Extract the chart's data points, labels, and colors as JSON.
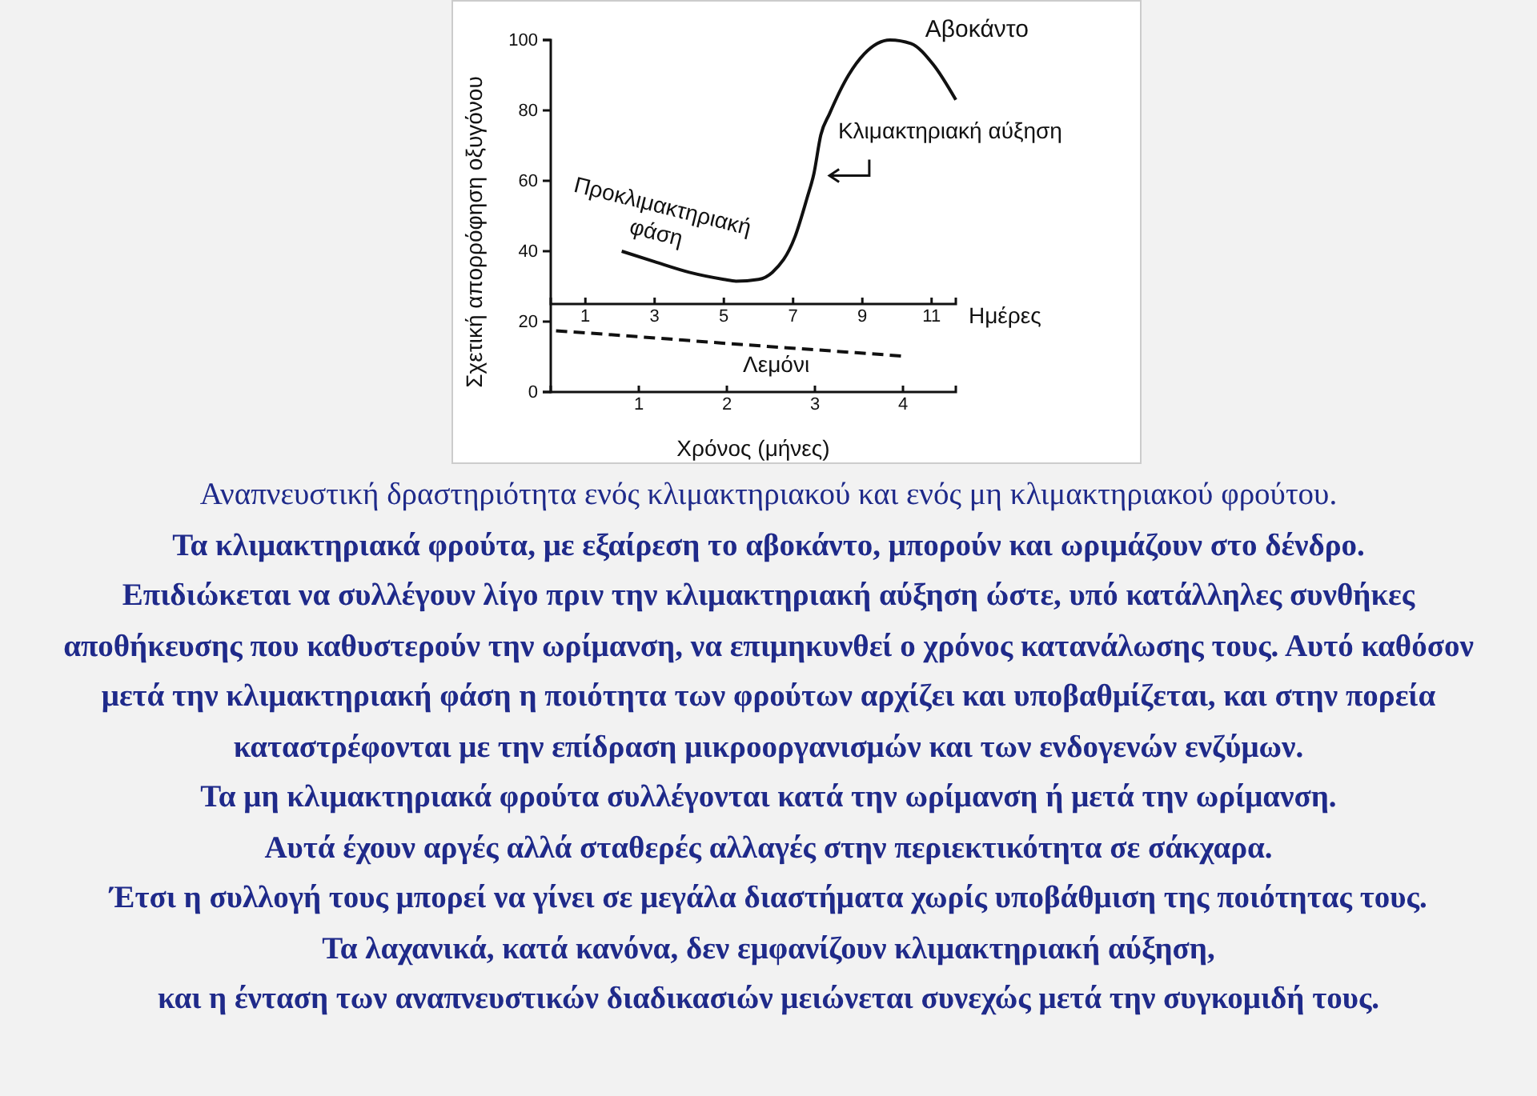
{
  "chart_data": {
    "type": "line",
    "title": "Αναπνευστική δραστηριότητα ενός κλιμακτηριακού και ενός μη κλιμακτηριακού φρούτου.",
    "ylabel": "Σχετική απορρόφηση οξυγόνου",
    "xlabel": "Χρόνος (μήνες)",
    "x2label": "Ημέρες",
    "xlim": [
      0,
      4.6
    ],
    "xticks": [
      1,
      2,
      3,
      4
    ],
    "x2lim": [
      0,
      11.7
    ],
    "x2ticks": [
      1,
      3,
      5,
      7,
      9,
      11
    ],
    "ylim": [
      0,
      100
    ],
    "yticks": [
      0,
      20,
      40,
      60,
      80,
      100
    ],
    "grid": false,
    "marker": "none",
    "series": [
      {
        "name": "Αβοκάντο",
        "color": "#111111",
        "axis": "x2",
        "line_style": "solid",
        "x": [
          2.05,
          3,
          4,
          5,
          5.35,
          6,
          6.4,
          7.05,
          7.4,
          7.6,
          7.8,
          8.05,
          8.6,
          9.05,
          9.8,
          10.4,
          11.05,
          11.7
        ],
        "values": [
          40,
          37,
          34,
          32,
          31.5,
          32,
          34,
          44,
          55,
          62,
          73,
          79,
          90,
          96,
          100,
          99,
          93,
          83
        ]
      },
      {
        "name": "Λεμόνι",
        "color": "#111111",
        "line_style": "dashed",
        "x": [
          0.06,
          1,
          2,
          3,
          4
        ],
        "values": [
          17.4,
          15.7,
          13.8,
          12,
          10.2
        ]
      }
    ],
    "annotations": [
      "Προκλιμακτηριακή φάση",
      "Κλιμακτηριακή αύξηση",
      "Τα κλιμακτηριακά φρούτα, με εξαίρεση το αβοκάντο, μπορούν και ωριμάζουν στο δένδρο.",
      "Επιδιώκεται να συλλέγουν λίγο πριν την κλιμακτηριακή αύξηση ώστε, υπό κατάλληλες συνθήκες αποθήκευσης που καθυστερούν την ωρίμανση, να επιμηκυνθεί ο χρόνος κατανάλωσης τους. Αυτό καθόσον μετά την κλιμακτηριακή φάση η ποιότητα των φρούτων αρχίζει και υποβαθμίζεται, και στην πορεία καταστρέφονται με την επίδραση μικροοργανισμών και των ενδογενών ενζύμων.",
      "Τα μη κλιμακτηριακά φρούτα συλλέγονται κατά την ωρίμανση ή μετά την ωρίμανση.",
      "Αυτά έχουν αργές αλλά σταθερές αλλαγές στην περιεκτικότητα σε σάκχαρα.",
      "Έτσι η συλλογή τους μπορεί να γίνει σε μεγάλα διαστήματα χωρίς υποβάθμιση της ποιότητας τους.",
      "Τα λαχανικά, κατά κανόνα, δεν εμφανίζουν κλιμακτηριακή αύξηση,",
      "και η ένταση των αναπνευστικών διαδικασιών μειώνεται συνεχώς μετά την συγκομιδή τους."
    ]
  }
}
